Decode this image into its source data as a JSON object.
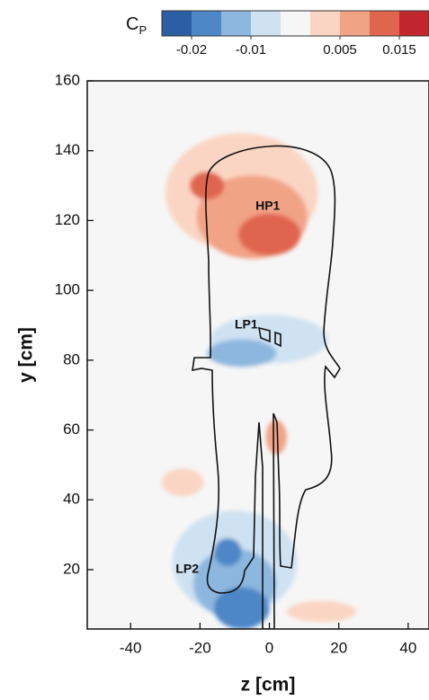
{
  "chart_data": {
    "type": "contour",
    "xlabel": "z [cm]",
    "ylabel": "y [cm]",
    "xlim": [
      -52.5,
      46
    ],
    "ylim": [
      3,
      160
    ],
    "xticks": [
      -40,
      -20,
      0,
      20,
      40
    ],
    "yticks": [
      20,
      40,
      60,
      80,
      100,
      120,
      140,
      160
    ],
    "colorbar": {
      "label": "C",
      "label_sub": "P",
      "levels": [
        -0.025,
        -0.02,
        -0.015,
        -0.01,
        -0.005,
        0,
        0.005,
        0.01,
        0.015,
        0.02
      ],
      "colors": [
        "#2c5ea6",
        "#4d87c7",
        "#8db7df",
        "#cfe2f2",
        "#f6f6f6",
        "#fbd5c3",
        "#f1a386",
        "#e0654f",
        "#c1272d"
      ],
      "ticks": [
        -0.02,
        -0.01,
        0.005,
        0.015
      ]
    },
    "regions": [
      {
        "z": -8,
        "y": 128,
        "rz": 22,
        "ry": 17,
        "value": 0.0025
      },
      {
        "z": -5,
        "y": 121,
        "rz": 16,
        "ry": 12,
        "value": 0.0075
      },
      {
        "z": 0,
        "y": 116,
        "rz": 9,
        "ry": 6,
        "value": 0.0125
      },
      {
        "z": -18,
        "y": 130,
        "rz": 5,
        "ry": 4,
        "value": 0.0125
      },
      {
        "z": -30,
        "y": 105,
        "rz": 14,
        "ry": 7,
        "value": -0.0025
      },
      {
        "z": 15,
        "y": 107,
        "rz": 8,
        "ry": 5,
        "value": -0.0025
      },
      {
        "z": -5,
        "y": 85,
        "rz": 25,
        "ry": 10,
        "value": -0.0025
      },
      {
        "z": 0,
        "y": 86,
        "rz": 17,
        "ry": 7,
        "value": -0.0075
      },
      {
        "z": -8,
        "y": 82,
        "rz": 10,
        "ry": 4,
        "value": -0.0125
      },
      {
        "z": -25,
        "y": 66,
        "rz": 12,
        "ry": 6,
        "value": -0.0025
      },
      {
        "z": 10,
        "y": 65,
        "rz": 10,
        "ry": 5,
        "value": -0.0025
      },
      {
        "z": 2,
        "y": 58,
        "rz": 3,
        "ry": 5,
        "value": 0.0075
      },
      {
        "z": -25,
        "y": 45,
        "rz": 6,
        "ry": 4,
        "value": 0.0025
      },
      {
        "z": -10,
        "y": 35,
        "rz": 13,
        "ry": 8,
        "value": -0.0025
      },
      {
        "z": -10,
        "y": 22,
        "rz": 18,
        "ry": 15,
        "value": -0.0075
      },
      {
        "z": -10,
        "y": 16,
        "rz": 12,
        "ry": 10,
        "value": -0.0125
      },
      {
        "z": -8,
        "y": 9,
        "rz": 8,
        "ry": 6,
        "value": -0.0175
      },
      {
        "z": -12,
        "y": 25,
        "rz": 4,
        "ry": 4,
        "value": -0.0175
      },
      {
        "z": 15,
        "y": 8,
        "rz": 10,
        "ry": 3,
        "value": 0.0025
      }
    ],
    "annotations": [
      {
        "text": "HP1",
        "z": -4,
        "y": 124
      },
      {
        "text": "LP1",
        "z": -10,
        "y": 90
      },
      {
        "text": "LP2",
        "z": -27,
        "y": 20
      }
    ]
  }
}
